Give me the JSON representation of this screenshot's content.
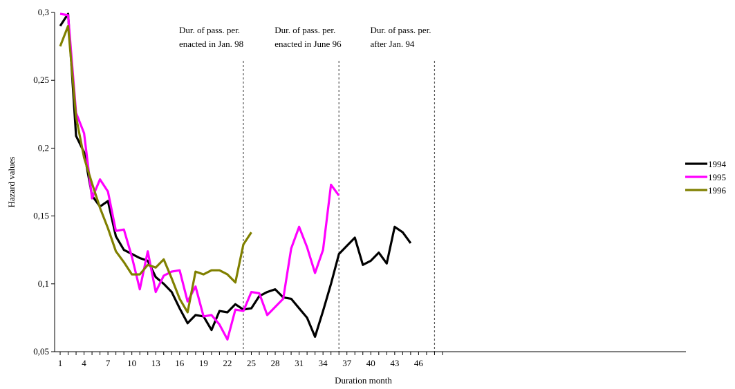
{
  "chart_data": {
    "type": "line",
    "title": "",
    "xlabel": "Duration month",
    "ylabel": "Hazard values",
    "xlim": [
      1,
      48
    ],
    "ylim": [
      0.05,
      0.3
    ],
    "x_ticks": [
      1,
      4,
      7,
      10,
      13,
      16,
      19,
      22,
      25,
      28,
      31,
      34,
      37,
      40,
      43,
      46
    ],
    "x_tick_labels": [
      "1",
      "4",
      "7",
      "10",
      "13",
      "16",
      "19",
      "22",
      "25",
      "28",
      "31",
      "34",
      "37",
      "40",
      "43",
      "46"
    ],
    "y_ticks": [
      0.05,
      0.1,
      0.15,
      0.2,
      0.25,
      0.3
    ],
    "y_tick_labels": [
      "0,05",
      "0,1",
      "0,15",
      "0,2",
      "0,25",
      "0,3"
    ],
    "grid": false,
    "legend_position": "right",
    "series": [
      {
        "name": "1994",
        "color": "#000000",
        "x": [
          1,
          2,
          3,
          4,
          5,
          6,
          7,
          8,
          9,
          10,
          11,
          12,
          13,
          14,
          15,
          16,
          17,
          18,
          19,
          20,
          21,
          22,
          23,
          24,
          25,
          26,
          27,
          28,
          29,
          30,
          31,
          32,
          33,
          34,
          35,
          36,
          37,
          38,
          39,
          40,
          41,
          42,
          43,
          44,
          45
        ],
        "values": [
          0.29,
          0.299,
          0.209,
          0.197,
          0.165,
          0.157,
          0.161,
          0.135,
          0.125,
          0.122,
          0.119,
          0.117,
          0.105,
          0.1,
          0.094,
          0.082,
          0.071,
          0.077,
          0.076,
          0.066,
          0.08,
          0.079,
          0.085,
          0.081,
          0.082,
          0.091,
          0.094,
          0.096,
          0.09,
          0.089,
          0.082,
          0.075,
          0.061,
          0.08,
          0.1,
          0.122,
          0.128,
          0.134,
          0.114,
          0.117,
          0.123,
          0.115,
          0.142,
          0.138,
          0.13
        ]
      },
      {
        "name": "1995",
        "color": "#ff00ff",
        "x": [
          1,
          2,
          3,
          4,
          5,
          6,
          7,
          8,
          9,
          10,
          11,
          12,
          13,
          14,
          15,
          16,
          17,
          18,
          19,
          20,
          21,
          22,
          23,
          24,
          25,
          26,
          27,
          28,
          29,
          30,
          31,
          32,
          33,
          34,
          35,
          36
        ],
        "values": [
          0.299,
          0.298,
          0.226,
          0.211,
          0.163,
          0.177,
          0.168,
          0.139,
          0.14,
          0.12,
          0.096,
          0.124,
          0.094,
          0.106,
          0.109,
          0.11,
          0.087,
          0.098,
          0.076,
          0.077,
          0.07,
          0.059,
          0.081,
          0.08,
          0.094,
          0.093,
          0.077,
          0.083,
          0.089,
          0.126,
          0.142,
          0.127,
          0.108,
          0.125,
          0.173,
          0.165
        ]
      },
      {
        "name": "1996",
        "color": "#808000",
        "x": [
          1,
          2,
          3,
          4,
          5,
          6,
          7,
          8,
          9,
          10,
          11,
          12,
          13,
          14,
          15,
          16,
          17,
          18,
          19,
          20,
          21,
          22,
          23,
          24,
          25
        ],
        "values": [
          0.275,
          0.29,
          0.223,
          0.193,
          0.174,
          0.156,
          0.141,
          0.124,
          0.116,
          0.107,
          0.107,
          0.114,
          0.112,
          0.118,
          0.104,
          0.089,
          0.079,
          0.109,
          0.107,
          0.11,
          0.11,
          0.107,
          0.101,
          0.129,
          0.138
        ]
      }
    ],
    "reference_lines": [
      {
        "x": 24,
        "label": [
          "Dur. of pass. per.",
          "enacted in Jan. 98"
        ]
      },
      {
        "x": 36,
        "label": [
          "Dur. of pass. per.",
          "enacted in June 96"
        ]
      },
      {
        "x": 48,
        "label": [
          "Dur. of pass. per.",
          "after Jan. 94"
        ]
      }
    ]
  }
}
